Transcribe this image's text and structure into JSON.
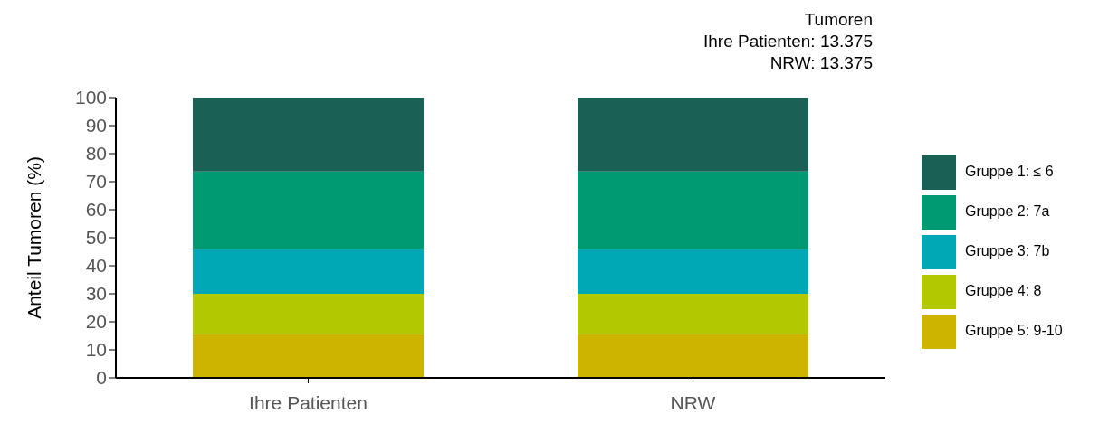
{
  "chart_data": {
    "type": "bar",
    "stacked": true,
    "title": "Tumoren",
    "annotations": [
      "Ihre Patienten: 13.375",
      "NRW: 13.375"
    ],
    "ylabel": "Anteil Tumoren (%)",
    "categories": [
      "Ihre Patienten",
      "NRW"
    ],
    "series": [
      {
        "name": "Gruppe 5: 9-10",
        "color": "#cdb400",
        "values": [
          15.6,
          15.6
        ]
      },
      {
        "name": "Gruppe 4: 8",
        "color": "#b2c800",
        "values": [
          14.4,
          14.4
        ]
      },
      {
        "name": "Gruppe 3: 7b",
        "color": "#00a8b5",
        "values": [
          16.0,
          16.0
        ]
      },
      {
        "name": "Gruppe 2: 7a",
        "color": "#009a72",
        "values": [
          27.6,
          27.6
        ]
      },
      {
        "name": "Gruppe 1: ≤ 6",
        "color": "#1a6055",
        "values": [
          26.4,
          26.4
        ]
      }
    ],
    "ylim": [
      0,
      100
    ],
    "yticks": [
      0,
      10,
      20,
      30,
      40,
      50,
      60,
      70,
      80,
      90,
      100
    ],
    "grid": false,
    "legend": "right"
  }
}
